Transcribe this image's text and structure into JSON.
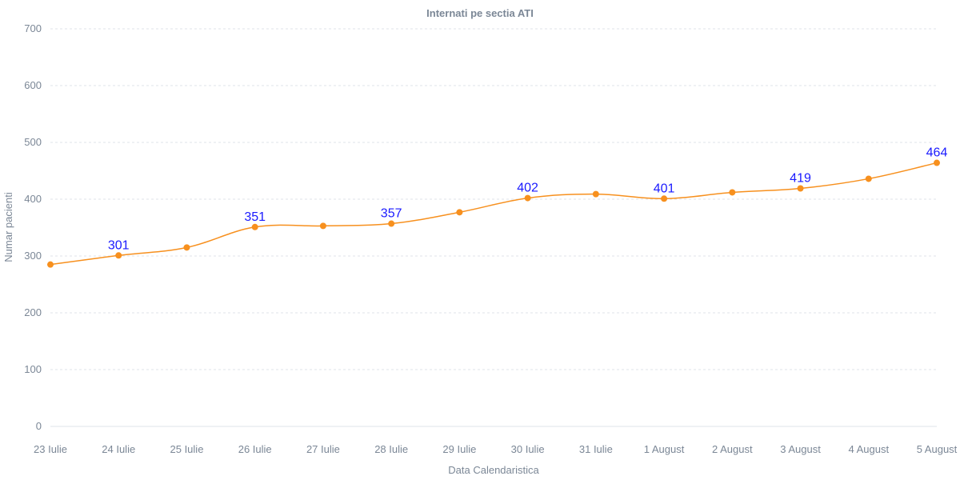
{
  "chart_data": {
    "type": "line",
    "title": "Internati pe sectia ATI",
    "xlabel": "Data Calendaristica",
    "ylabel": "Numar pacienti",
    "categories": [
      "23 Iulie",
      "24 Iulie",
      "25 Iulie",
      "26 Iulie",
      "27 Iulie",
      "28 Iulie",
      "29 Iulie",
      "30 Iulie",
      "31 Iulie",
      "1 August",
      "2 August",
      "3 August",
      "4 August",
      "5 August"
    ],
    "series": [
      {
        "values": [
          285,
          301,
          315,
          351,
          353,
          357,
          377,
          402,
          409,
          401,
          412,
          419,
          436,
          464
        ],
        "labels": [
          null,
          "301",
          null,
          "351",
          null,
          "357",
          null,
          "402",
          null,
          "401",
          null,
          "419",
          null,
          "464"
        ]
      }
    ],
    "ylim": [
      0,
      700
    ],
    "yticks": [
      0,
      100,
      200,
      300,
      400,
      500,
      600,
      700
    ],
    "grid": true,
    "colors": {
      "line": "#f7901e",
      "marker": "#f7901e",
      "data_label": "#1a1aff",
      "text": "#7b8796",
      "grid": "#dfe3e8"
    }
  }
}
